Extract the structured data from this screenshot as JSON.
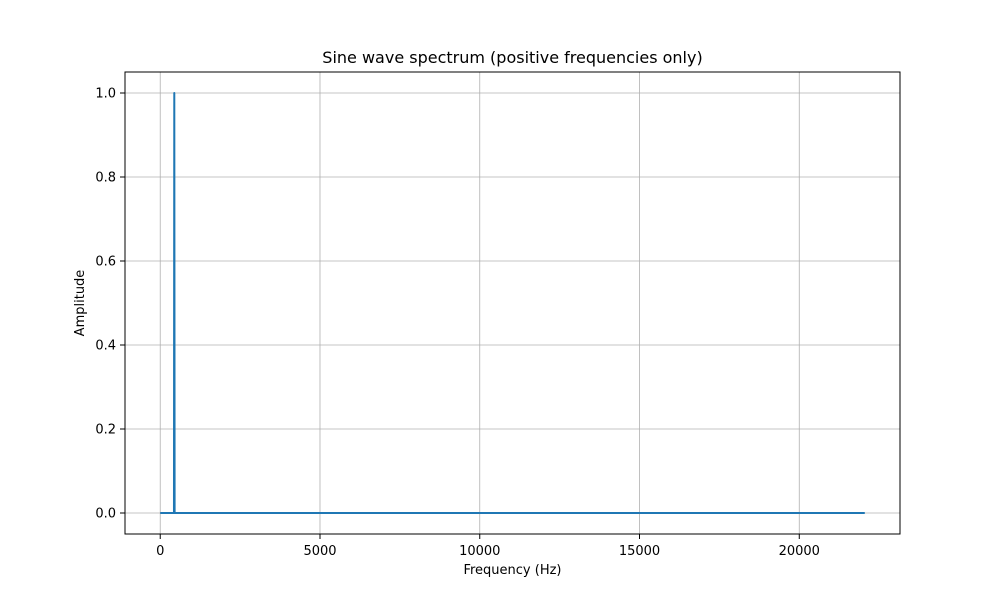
{
  "chart_data": {
    "type": "line",
    "title": "Sine wave spectrum (positive frequencies only)",
    "xlabel": "Frequency (Hz)",
    "ylabel": "Amplitude",
    "xlim": [
      -1102.5,
      23152.5
    ],
    "ylim": [
      -0.05,
      1.05
    ],
    "xticks": [
      0,
      5000,
      10000,
      15000,
      20000
    ],
    "xtick_labels": [
      "0",
      "5000",
      "10000",
      "15000",
      "20000"
    ],
    "yticks": [
      0.0,
      0.2,
      0.4,
      0.6,
      0.8,
      1.0
    ],
    "ytick_labels": [
      "0.0",
      "0.2",
      "0.4",
      "0.6",
      "0.8",
      "1.0"
    ],
    "grid": true,
    "series": [
      {
        "color": "#1f77b4",
        "x": [
          0,
          430,
          440,
          450,
          22050
        ],
        "y": [
          0,
          0,
          1.0,
          0,
          0
        ]
      }
    ]
  },
  "colors": {
    "line": "#1f77b4",
    "grid": "#b0b0b0",
    "axes": "#000000"
  }
}
